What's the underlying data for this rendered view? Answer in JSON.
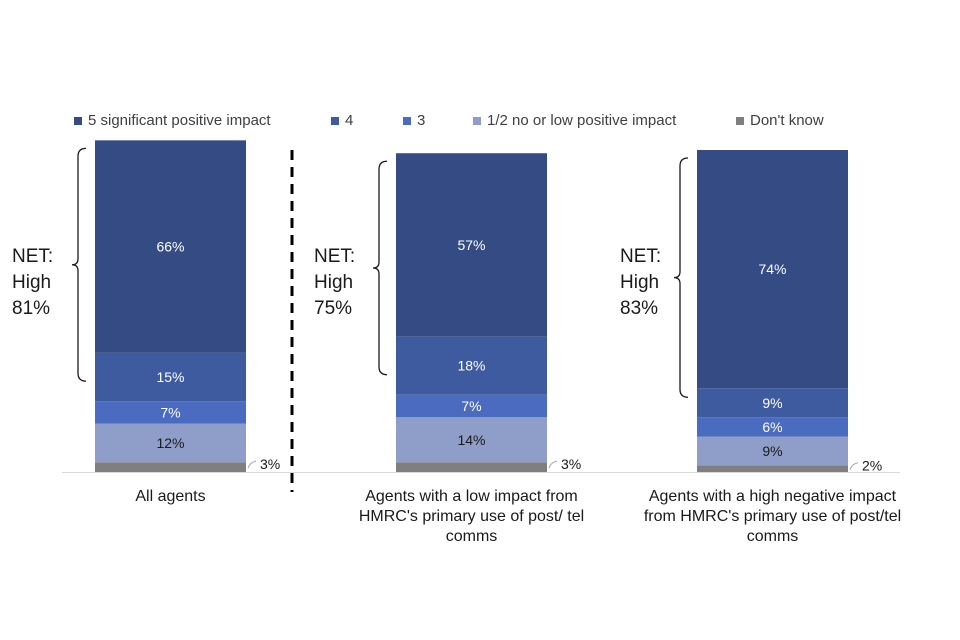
{
  "chart_data": {
    "type": "bar",
    "stacked": true,
    "orientation": "vertical",
    "legend_position": "top",
    "grid": false,
    "ylim": [
      0,
      100
    ],
    "legend": [
      {
        "key": "s5",
        "label": "5 significant positive impact",
        "color": "#344B84"
      },
      {
        "key": "s4",
        "label": "4",
        "color": "#3F5BA0"
      },
      {
        "key": "s3",
        "label": "3",
        "color": "#4A6BC0"
      },
      {
        "key": "s12",
        "label": "1/2 no or low positive impact",
        "color": "#8F9EC9"
      },
      {
        "key": "dk",
        "label": "Don't know",
        "color": "#7F7F7F"
      }
    ],
    "categories": [
      "All agents",
      "Agents with a low impact from HMRC's primary use of post/ tel comms",
      "Agents with a high negative impact from HMRC's primary use of post/tel comms"
    ],
    "category_lines": [
      [
        "All agents"
      ],
      [
        "Agents with a low impact from",
        "HMRC's primary use of post/ tel",
        "comms"
      ],
      [
        "Agents with a high negative impact",
        "from HMRC's primary use of post/tel",
        "comms"
      ]
    ],
    "series": [
      {
        "key": "s5",
        "name": "5 significant positive impact",
        "values": [
          66,
          57,
          74
        ],
        "labels": [
          "66%",
          "57%",
          "74%"
        ]
      },
      {
        "key": "s4",
        "name": "4",
        "values": [
          15,
          18,
          9
        ],
        "labels": [
          "15%",
          "18%",
          "9%"
        ]
      },
      {
        "key": "s3",
        "name": "3",
        "values": [
          7,
          7,
          6
        ],
        "labels": [
          "7%",
          "7%",
          "6%"
        ]
      },
      {
        "key": "s12",
        "name": "1/2 no or low positive impact",
        "values": [
          12,
          14,
          9
        ],
        "labels": [
          "12%",
          "14%",
          "9%"
        ]
      },
      {
        "key": "dk",
        "name": "Don't know",
        "values": [
          3,
          3,
          2
        ],
        "labels": [
          "3%",
          "3%",
          "2%"
        ]
      }
    ],
    "net_labels": [
      {
        "line1": "NET:",
        "line2": "High",
        "line3": "81%"
      },
      {
        "line1": "NET:",
        "line2": "High",
        "line3": "75%"
      },
      {
        "line1": "NET:",
        "line2": "High",
        "line3": "83%"
      }
    ]
  }
}
